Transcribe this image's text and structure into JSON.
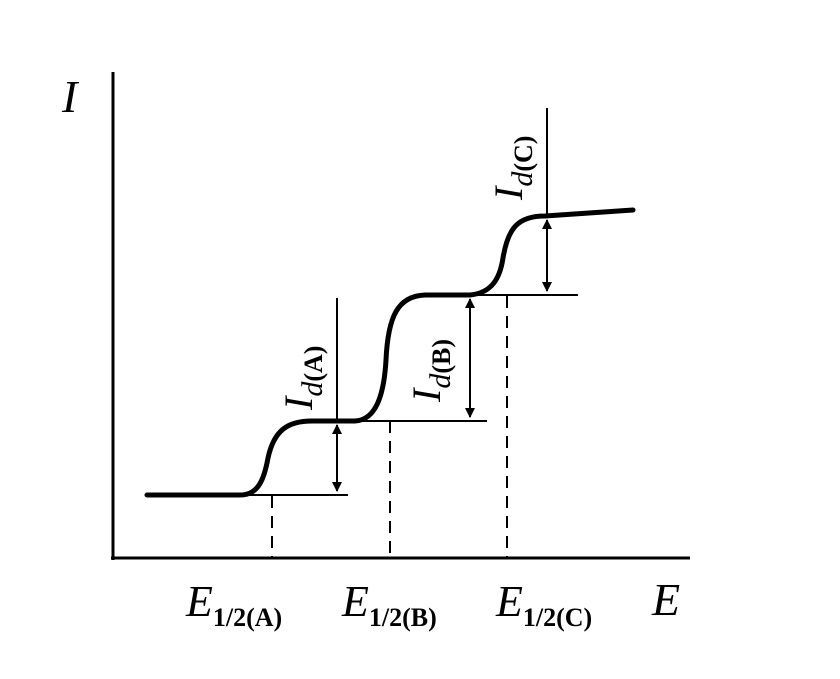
{
  "axes": {
    "y_label": "I",
    "x_label": "E"
  },
  "half_wave_potentials": [
    {
      "symbol": "E",
      "subscript": "1/2(A)"
    },
    {
      "symbol": "E",
      "subscript": "1/2(B)"
    },
    {
      "symbol": "E",
      "subscript": "1/2(C)"
    }
  ],
  "diffusion_currents": [
    {
      "symbol": "I",
      "subscript": "d",
      "species": "(A)"
    },
    {
      "symbol": "I",
      "subscript": "d",
      "species": "(B)"
    },
    {
      "symbol": "I",
      "subscript": "d",
      "species": "(C)"
    }
  ]
}
